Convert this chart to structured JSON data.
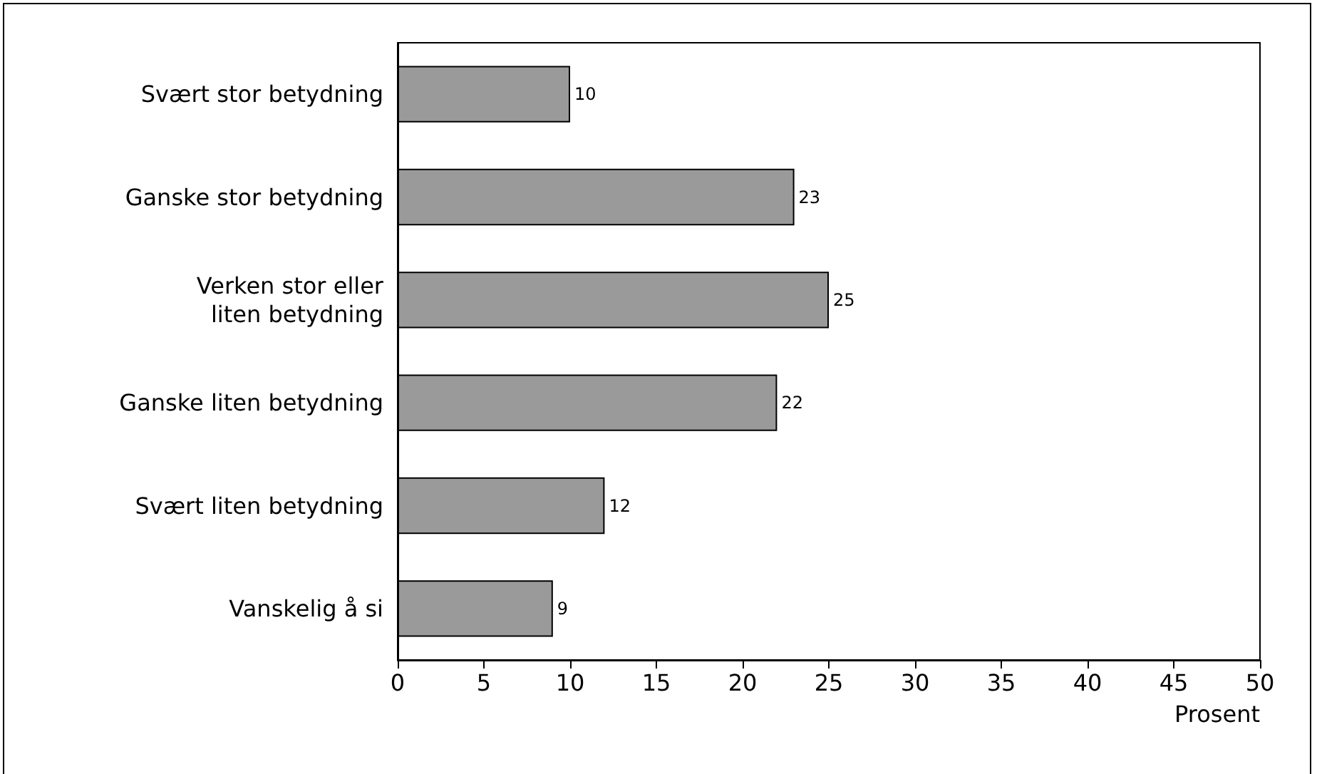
{
  "chart_data": {
    "type": "bar",
    "orientation": "horizontal",
    "xlabel": "Prosent",
    "categories": [
      "Svært stor betydning",
      "Ganske stor betydning",
      "Verken stor eller\nliten betydning",
      "Ganske liten betydning",
      "Svært liten betydning",
      "Vanskelig å si"
    ],
    "values": [
      10,
      23,
      25,
      22,
      12,
      9
    ],
    "color": "#9a9a9a",
    "xlim": [
      0,
      50
    ],
    "xticks": [
      0,
      5,
      10,
      15,
      20,
      25,
      30,
      35,
      40,
      45,
      50
    ],
    "data_labels": true,
    "grid": false
  }
}
